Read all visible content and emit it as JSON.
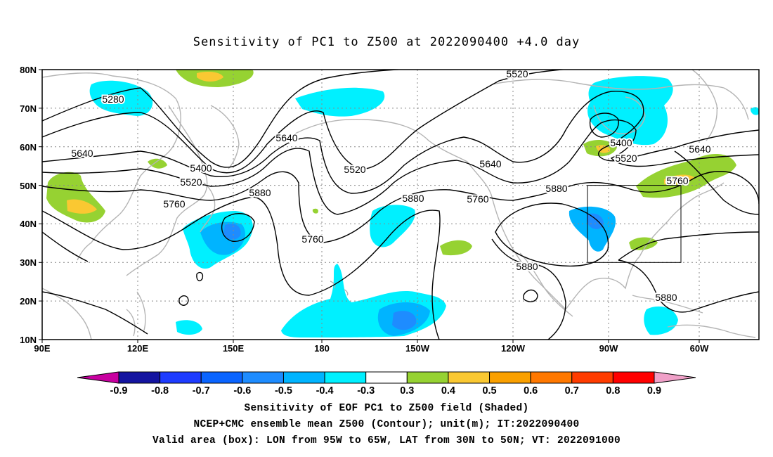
{
  "title": "Sensitivity of PC1 to Z500 at 2022090400 +4.0 day",
  "map": {
    "lat_labels": [
      "80N",
      "70N",
      "60N",
      "50N",
      "40N",
      "30N",
      "20N",
      "10N"
    ],
    "lon_labels": [
      "90E",
      "120E",
      "150E",
      "180",
      "150W",
      "120W",
      "90W",
      "60W"
    ],
    "contour_labels": [
      "5280",
      "5640",
      "5400",
      "5520",
      "5760",
      "5880",
      "5640",
      "5760",
      "5520",
      "5880",
      "5640",
      "5760",
      "5880",
      "5520",
      "5400",
      "5520",
      "5640",
      "5760",
      "5880",
      "5880"
    ],
    "box": {
      "lon_range": "95W to 65W",
      "lat_range": "30N to 50N"
    },
    "colors": {
      "strong_neg": "#1e3cff",
      "neg": "#00b4ff",
      "light_neg": "#00f0ff",
      "light_pos": "#96d232",
      "pos": "#fac832",
      "coast": "#b4b4b4",
      "contour": "#000000"
    }
  },
  "colorbar": {
    "labels": [
      "-0.9",
      "-0.8",
      "-0.7",
      "-0.6",
      "-0.5",
      "-0.4",
      "-0.3",
      "0.3",
      "0.4",
      "0.5",
      "0.6",
      "0.7",
      "0.8",
      "0.9"
    ],
    "colors": [
      "#1414a0",
      "#1e3cff",
      "#0a64ff",
      "#1e8cff",
      "#00b4ff",
      "#00f0ff",
      "#ffffff",
      "#96d232",
      "#fac832",
      "#faa000",
      "#ff7800",
      "#ff3c00",
      "#ff0000"
    ],
    "left_arrow": "#c800a0",
    "right_arrow": "#f0a0c8"
  },
  "captions": {
    "line1": "Sensitivity of EOF PC1 to Z500 field (Shaded)",
    "line2": "NCEP+CMC ensemble mean Z500 (Contour); unit(m); IT:2022090400",
    "line3": "Valid area (box): LON from 95W to 65W, LAT from 30N to 50N; VT: 2022091000"
  }
}
